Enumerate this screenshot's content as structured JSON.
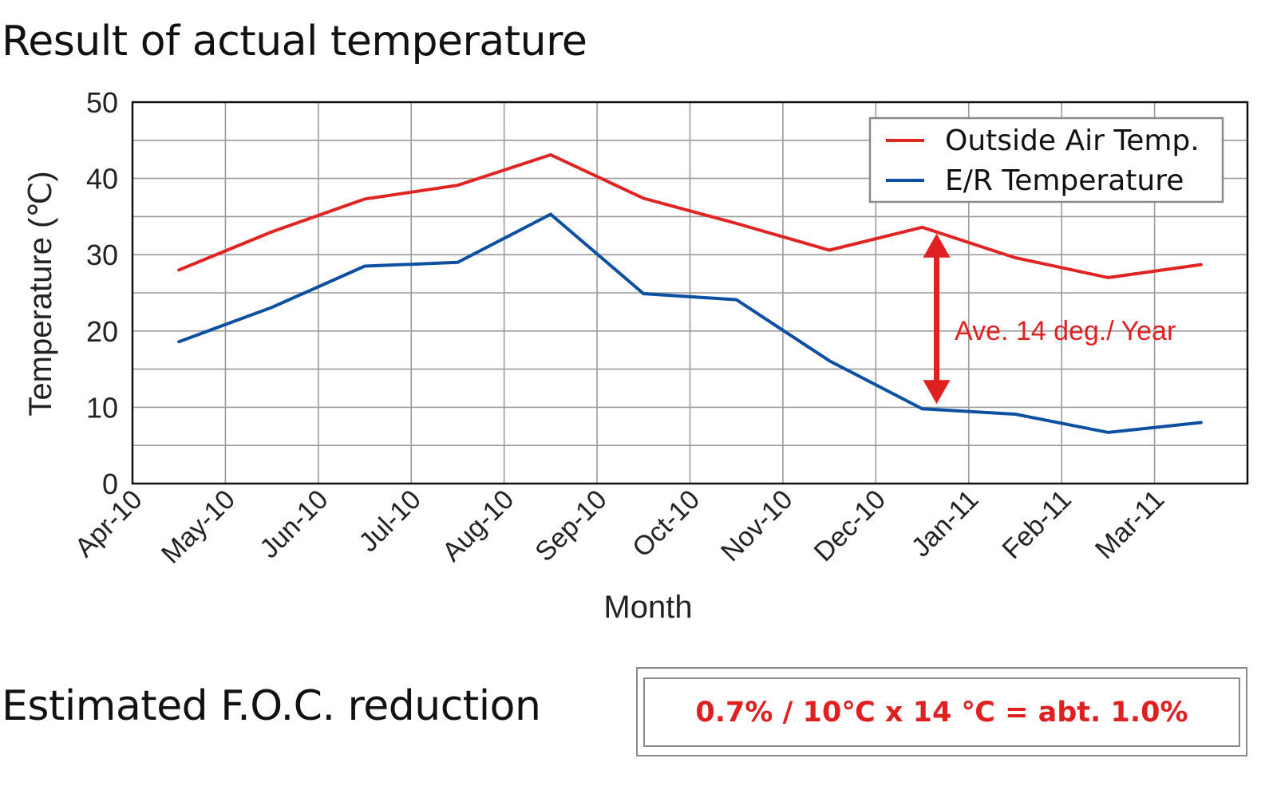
{
  "page": {
    "title": "Result of actual temperature",
    "foc_label": "Estimated F.O.C. reduction",
    "formula": "0.7% / 10℃ x 14 ℃ = abt. 1.0%"
  },
  "colors": {
    "outside": "#e02424",
    "er": "#0d4fa0",
    "annotation": "#e02020",
    "grid": "#9a9a9a",
    "axis": "#111111"
  },
  "chart_data": {
    "type": "line",
    "title": "Result of actual temperature",
    "xlabel": "Month",
    "ylabel": "Temperature (℃)",
    "ylim": [
      0,
      50
    ],
    "yticks": [
      0,
      10,
      20,
      30,
      40,
      50
    ],
    "y_minor_step": 5,
    "grid": true,
    "legend_position": "top-right",
    "x_tick_labels": [
      "Apr-10",
      "May-10",
      "Jun-10",
      "Jul-10",
      "Aug-10",
      "Sep-10",
      "Oct-10",
      "Nov-10",
      "Dec-10",
      "Jan-11",
      "Feb-11",
      "Mar-11"
    ],
    "points_offset": "mid-month",
    "series": [
      {
        "name": "Outside Air Temp.",
        "color_key": "outside",
        "values": [
          28.0,
          33.0,
          37.3,
          39.1,
          43.1,
          37.4,
          34.1,
          30.6,
          33.6,
          29.6,
          27.0,
          28.7
        ]
      },
      {
        "name": "E/R Temperature",
        "color_key": "er",
        "values": [
          18.6,
          23.1,
          28.5,
          29.0,
          35.3,
          24.9,
          24.1,
          16.1,
          9.8,
          9.1,
          6.7,
          8.0
        ]
      }
    ],
    "annotations": [
      {
        "text": "Ave. 14 deg./ Year",
        "type": "double-arrow",
        "point_index": 8,
        "from_value": 33.6,
        "to_value": 9.8
      }
    ]
  }
}
